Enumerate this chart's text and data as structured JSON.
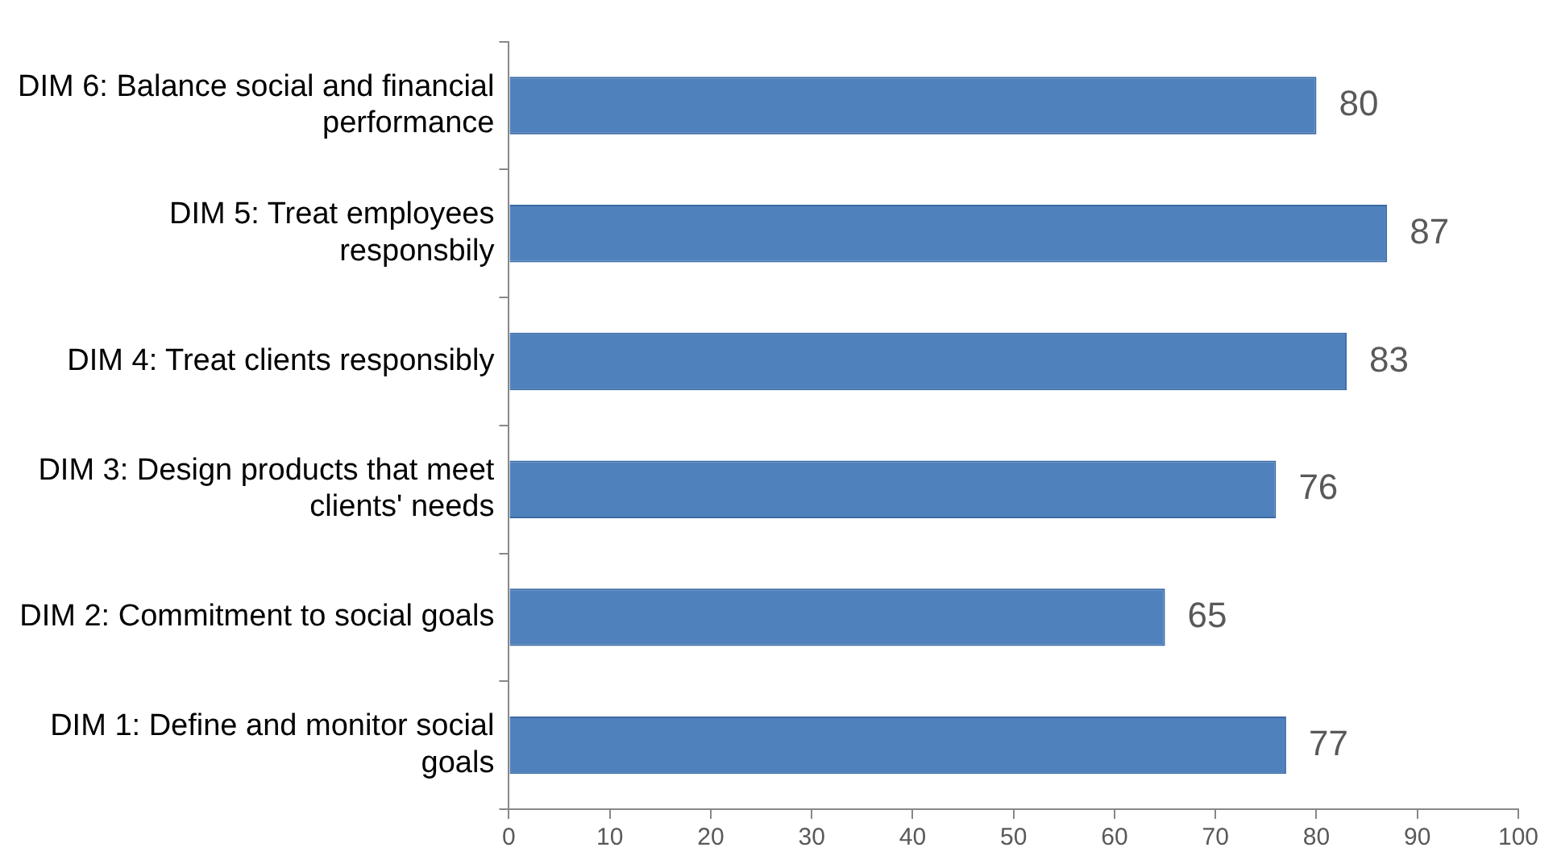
{
  "chart_data": {
    "type": "bar",
    "orientation": "horizontal",
    "categories": [
      "DIM 6: Balance social and financial performance",
      "DIM 5: Treat employees responsbily",
      "DIM 4: Treat clients responsibly",
      "DIM 3: Design products that meet clients' needs",
      "DIM 2: Commitment to social goals",
      "DIM 1: Define and monitor social goals"
    ],
    "values": [
      80,
      87,
      83,
      76,
      65,
      77
    ],
    "color": "#4f81bd",
    "xlim": [
      0,
      100
    ],
    "xticks": [
      0,
      10,
      20,
      30,
      40,
      50,
      60,
      70,
      80,
      90,
      100
    ],
    "data_labels": true,
    "grid": false,
    "legend": false
  }
}
